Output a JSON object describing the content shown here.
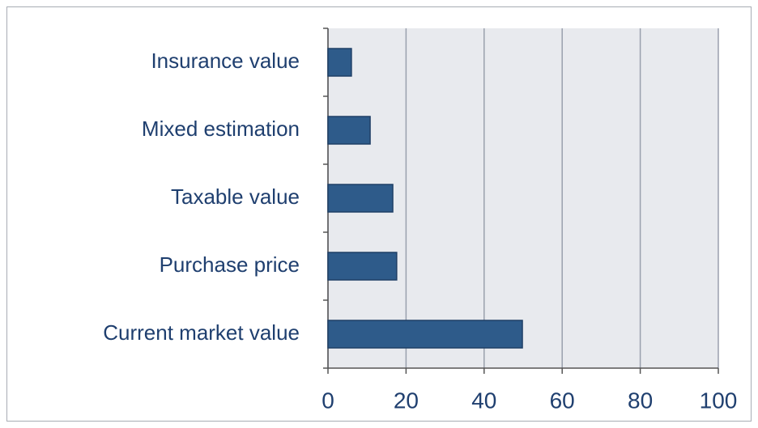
{
  "chart_data": {
    "type": "bar",
    "orientation": "horizontal",
    "categories": [
      "Insurance value",
      "Mixed estimation",
      "Taxable value",
      "Purchase price",
      "Current market value"
    ],
    "values": [
      6,
      10.8,
      16.6,
      17.6,
      49.8
    ],
    "color": "#2e5b8a",
    "xlim": [
      0,
      100
    ],
    "xticks": [
      0,
      20,
      40,
      60,
      80,
      100
    ],
    "grid": true
  }
}
